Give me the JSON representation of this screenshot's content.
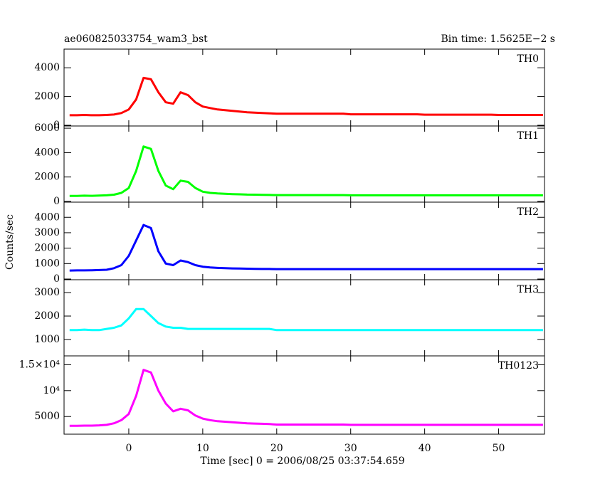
{
  "chart_data": {
    "type": "line",
    "title": "ae060825033754_wam3_bst",
    "subtitle": "Bin time: 1.5625E−2 s",
    "ylabel": "Counts/sec",
    "xlabel": "Time [sec] 0 = 2006/08/25 03:37:54.659",
    "xlim": [
      -8.75,
      56.2
    ],
    "xticks": [
      0,
      10,
      20,
      30,
      40,
      50
    ],
    "x": [
      -8,
      -7,
      -6,
      -5,
      -4,
      -3,
      -2,
      -1,
      0,
      1,
      2,
      3,
      4,
      5,
      6,
      7,
      8,
      9,
      10,
      11,
      12,
      13,
      14,
      15,
      16,
      17,
      18,
      19,
      20,
      21,
      22,
      23,
      24,
      25,
      26,
      27,
      28,
      29,
      30,
      31,
      32,
      33,
      34,
      35,
      36,
      37,
      38,
      39,
      40,
      41,
      42,
      43,
      44,
      45,
      46,
      47,
      48,
      49,
      50,
      51,
      52,
      53,
      54,
      55,
      56
    ],
    "panels": [
      {
        "name": "TH0",
        "color": "#ff0000",
        "ylim": [
          -50,
          5300
        ],
        "yticks": [
          0,
          2000,
          4000
        ],
        "values": [
          700,
          700,
          720,
          700,
          700,
          720,
          750,
          850,
          1100,
          1800,
          3300,
          3200,
          2300,
          1600,
          1500,
          2300,
          2100,
          1600,
          1300,
          1200,
          1100,
          1050,
          1000,
          950,
          900,
          880,
          850,
          830,
          800,
          800,
          800,
          800,
          800,
          800,
          800,
          800,
          800,
          800,
          760,
          760,
          760,
          760,
          760,
          760,
          760,
          760,
          760,
          760,
          740,
          740,
          740,
          740,
          740,
          740,
          740,
          740,
          740,
          740,
          720,
          720,
          720,
          720,
          720,
          720,
          720
        ]
      },
      {
        "name": "TH1",
        "color": "#00ff00",
        "ylim": [
          -60,
          6180
        ],
        "yticks": [
          0,
          2000,
          4000,
          6000
        ],
        "values": [
          450,
          450,
          470,
          460,
          480,
          500,
          550,
          700,
          1100,
          2500,
          4500,
          4300,
          2500,
          1300,
          1000,
          1700,
          1600,
          1100,
          800,
          700,
          650,
          620,
          600,
          580,
          560,
          550,
          540,
          530,
          520,
          520,
          520,
          520,
          520,
          520,
          520,
          520,
          520,
          520,
          500,
          500,
          500,
          500,
          500,
          500,
          500,
          500,
          500,
          500,
          500,
          500,
          500,
          500,
          500,
          500,
          500,
          500,
          500,
          500,
          500,
          500,
          500,
          500,
          500,
          500,
          500
        ]
      },
      {
        "name": "TH2",
        "color": "#0000ff",
        "ylim": [
          -45,
          4980
        ],
        "yticks": [
          0,
          1000,
          2000,
          3000,
          4000
        ],
        "values": [
          550,
          560,
          560,
          570,
          580,
          600,
          700,
          900,
          1500,
          2500,
          3500,
          3300,
          1800,
          1000,
          900,
          1200,
          1100,
          900,
          800,
          750,
          720,
          700,
          690,
          680,
          670,
          660,
          650,
          650,
          640,
          640,
          640,
          640,
          640,
          640,
          640,
          640,
          640,
          640,
          640,
          640,
          640,
          640,
          640,
          640,
          640,
          640,
          640,
          640,
          640,
          640,
          640,
          640,
          640,
          640,
          640,
          640,
          640,
          640,
          640,
          640,
          640,
          640,
          640,
          640,
          640
        ]
      },
      {
        "name": "TH3",
        "color": "#00ffff",
        "ylim": [
          300,
          3550
        ],
        "yticks": [
          1000,
          2000,
          3000
        ],
        "values": [
          1400,
          1400,
          1420,
          1400,
          1400,
          1450,
          1500,
          1600,
          1900,
          2300,
          2300,
          2000,
          1700,
          1550,
          1500,
          1500,
          1450,
          1450,
          1450,
          1450,
          1450,
          1450,
          1450,
          1450,
          1450,
          1450,
          1450,
          1450,
          1400,
          1400,
          1400,
          1400,
          1400,
          1400,
          1400,
          1400,
          1400,
          1400,
          1400,
          1400,
          1400,
          1400,
          1400,
          1400,
          1400,
          1400,
          1400,
          1400,
          1400,
          1400,
          1400,
          1400,
          1400,
          1400,
          1400,
          1400,
          1400,
          1400,
          1400,
          1400,
          1400,
          1400,
          1400,
          1400,
          1400
        ]
      },
      {
        "name": "TH0123",
        "color": "#ff00ff",
        "ylim": [
          1600,
          16700
        ],
        "yticks": [
          5000,
          {
            "value": 10000,
            "label": "10⁴"
          },
          {
            "value": 15000,
            "label": "1.5×10⁴"
          }
        ],
        "values": [
          3200,
          3200,
          3250,
          3250,
          3300,
          3400,
          3700,
          4300,
          5500,
          9000,
          14000,
          13500,
          10000,
          7500,
          6000,
          6500,
          6200,
          5200,
          4600,
          4300,
          4100,
          4000,
          3900,
          3800,
          3700,
          3650,
          3600,
          3550,
          3450,
          3450,
          3450,
          3450,
          3450,
          3450,
          3450,
          3450,
          3450,
          3450,
          3400,
          3400,
          3400,
          3400,
          3400,
          3400,
          3400,
          3400,
          3400,
          3400,
          3400,
          3400,
          3400,
          3400,
          3400,
          3400,
          3400,
          3400,
          3400,
          3400,
          3400,
          3400,
          3400,
          3400,
          3400,
          3400,
          3400
        ]
      }
    ]
  }
}
